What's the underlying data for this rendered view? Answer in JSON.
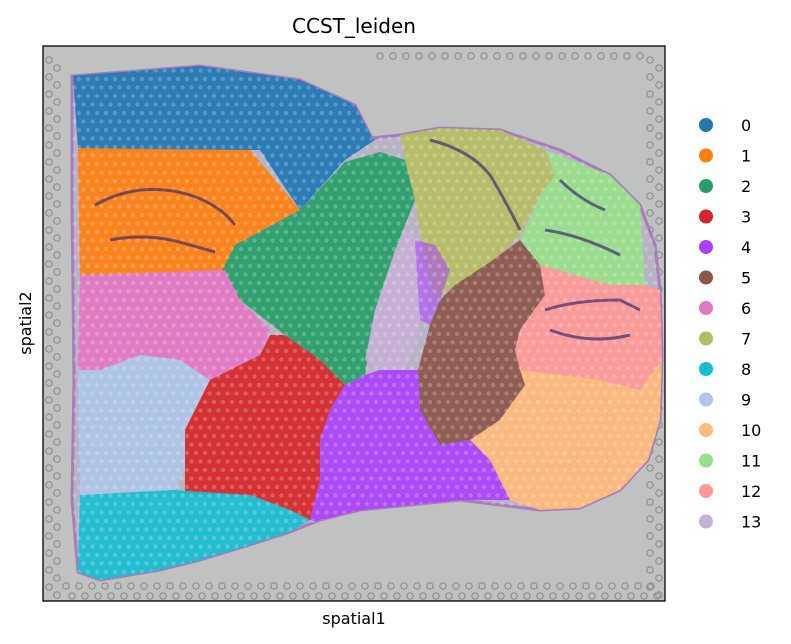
{
  "title": "CCST_leiden",
  "xlabel": "spatial1",
  "ylabel": "spatial2",
  "tissue_bg": "#bfc2c1",
  "clusters": [
    {
      "label": "0",
      "color": "#1f77b4"
    },
    {
      "label": "1",
      "color": "#ff7f0e"
    },
    {
      "label": "2",
      "color": "#279e68"
    },
    {
      "label": "3",
      "color": "#d62728"
    },
    {
      "label": "4",
      "color": "#aa40fc"
    },
    {
      "label": "5",
      "color": "#8c564b"
    },
    {
      "label": "6",
      "color": "#e377c2"
    },
    {
      "label": "7",
      "color": "#b5bd61"
    },
    {
      "label": "8",
      "color": "#17becf"
    },
    {
      "label": "9",
      "color": "#aec7e8"
    },
    {
      "label": "10",
      "color": "#ffbb78"
    },
    {
      "label": "11",
      "color": "#98df8a"
    },
    {
      "label": "12",
      "color": "#ff9896"
    },
    {
      "label": "13",
      "color": "#c5b0d5"
    }
  ]
}
